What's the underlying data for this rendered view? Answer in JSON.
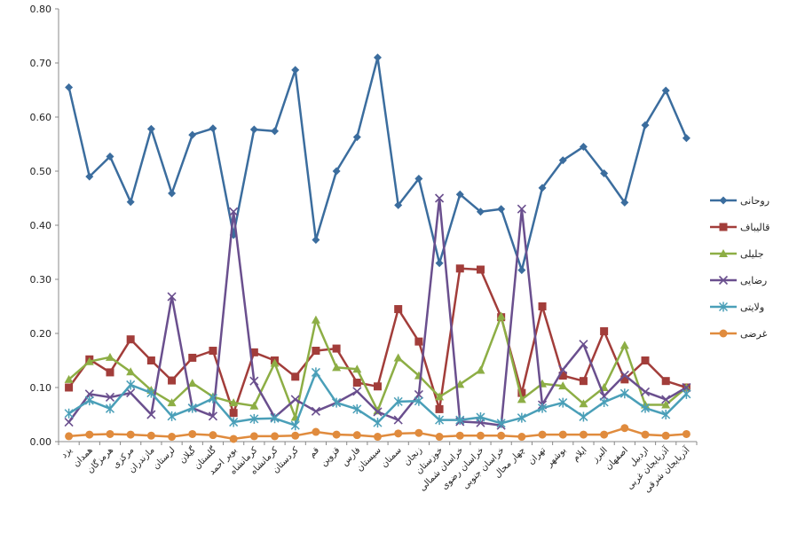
{
  "chart_data": {
    "type": "line",
    "title": "",
    "xlabel": "",
    "ylabel": "",
    "ylim": [
      0,
      0.8
    ],
    "yticks": [
      "0.00",
      "0.10",
      "0.20",
      "0.30",
      "0.40",
      "0.50",
      "0.60",
      "0.70",
      "0.80"
    ],
    "grid": false,
    "legend_position": "right",
    "categories": [
      "یزد",
      "همدان",
      "هرمزگان",
      "مرکزی",
      "مازندران",
      "لرستان",
      "گیلان",
      "گلستان",
      "بویر احمد",
      "کرمانشاه",
      "کرمانشاه",
      "کردستان",
      "قم",
      "قزوین",
      "فارس",
      "سیستان",
      "سمنان",
      "زنجان",
      "خوزستان",
      "خراسان شمالی",
      "خراسان رضوی",
      "خراسان جنوبی",
      "چهار محال",
      "تهران",
      "بوشهر",
      "ایلام",
      "البرز",
      "اصفهان",
      "اردبیل",
      "آذربایجان غربی",
      "آذربایجان شرقی"
    ],
    "series": [
      {
        "name": "روحانی",
        "color": "#3b6d9e",
        "marker": "diamond",
        "values": [
          0.655,
          0.49,
          0.527,
          0.443,
          0.578,
          0.459,
          0.567,
          0.579,
          0.382,
          0.577,
          0.574,
          0.687,
          0.373,
          0.5,
          0.563,
          0.71,
          0.437,
          0.486,
          0.33,
          0.457,
          0.425,
          0.43,
          0.317,
          0.469,
          0.52,
          0.545,
          0.496,
          0.442,
          0.585,
          0.649,
          0.561
        ]
      },
      {
        "name": "قالیباف",
        "color": "#a23d3a",
        "marker": "square",
        "values": [
          0.1,
          0.152,
          0.128,
          0.189,
          0.15,
          0.113,
          0.155,
          0.168,
          0.053,
          0.165,
          0.15,
          0.12,
          0.168,
          0.172,
          0.109,
          0.102,
          0.245,
          0.185,
          0.06,
          0.32,
          0.318,
          0.23,
          0.09,
          0.25,
          0.122,
          0.112,
          0.204,
          0.115,
          0.15,
          0.112,
          0.1
        ]
      },
      {
        "name": "جلیلی",
        "color": "#8dae45",
        "marker": "triangle",
        "values": [
          0.115,
          0.148,
          0.156,
          0.129,
          0.095,
          0.072,
          0.108,
          0.083,
          0.072,
          0.066,
          0.145,
          0.045,
          0.225,
          0.137,
          0.134,
          0.057,
          0.155,
          0.122,
          0.083,
          0.106,
          0.132,
          0.232,
          0.078,
          0.107,
          0.103,
          0.07,
          0.1,
          0.178,
          0.068,
          0.068,
          0.1
        ]
      },
      {
        "name": "رضایی",
        "color": "#6a4f8e",
        "marker": "x",
        "values": [
          0.036,
          0.088,
          0.082,
          0.09,
          0.05,
          0.268,
          0.062,
          0.047,
          0.425,
          0.112,
          0.045,
          0.078,
          0.056,
          0.072,
          0.093,
          0.055,
          0.04,
          0.087,
          0.45,
          0.037,
          0.035,
          0.03,
          0.43,
          0.068,
          0.133,
          0.18,
          0.084,
          0.123,
          0.092,
          0.078,
          0.1
        ]
      },
      {
        "name": "ولایتی",
        "color": "#4a9fb8",
        "marker": "asterisk",
        "values": [
          0.052,
          0.076,
          0.061,
          0.105,
          0.09,
          0.047,
          0.062,
          0.08,
          0.036,
          0.042,
          0.043,
          0.03,
          0.128,
          0.072,
          0.06,
          0.035,
          0.074,
          0.075,
          0.04,
          0.04,
          0.045,
          0.034,
          0.044,
          0.062,
          0.072,
          0.046,
          0.073,
          0.089,
          0.062,
          0.05,
          0.088
        ]
      },
      {
        "name": "غرضی",
        "color": "#e08b3d",
        "marker": "circle",
        "values": [
          0.01,
          0.013,
          0.014,
          0.013,
          0.011,
          0.009,
          0.014,
          0.012,
          0.005,
          0.01,
          0.01,
          0.011,
          0.018,
          0.013,
          0.012,
          0.009,
          0.015,
          0.016,
          0.009,
          0.011,
          0.011,
          0.011,
          0.009,
          0.013,
          0.013,
          0.013,
          0.013,
          0.025,
          0.013,
          0.011,
          0.014
        ]
      }
    ]
  }
}
